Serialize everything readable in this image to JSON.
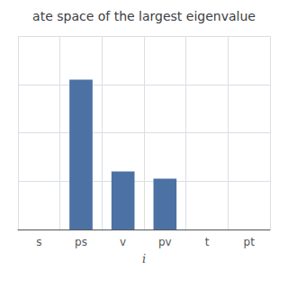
{
  "chart_data": {
    "type": "bar",
    "title": "ate space of the largest eigenvalue",
    "xlabel": "i",
    "categories": [
      "s",
      "ps",
      "v",
      "pv",
      "t",
      "pt"
    ],
    "values": [
      0.0,
      0.62,
      0.24,
      0.21,
      0.0,
      0.0
    ],
    "color": "#4c72a4",
    "ylim": [
      0,
      0.8
    ],
    "yticks": [
      0,
      0.2,
      0.4,
      0.6,
      0.8
    ],
    "grid": true,
    "tick_labels": "x"
  }
}
